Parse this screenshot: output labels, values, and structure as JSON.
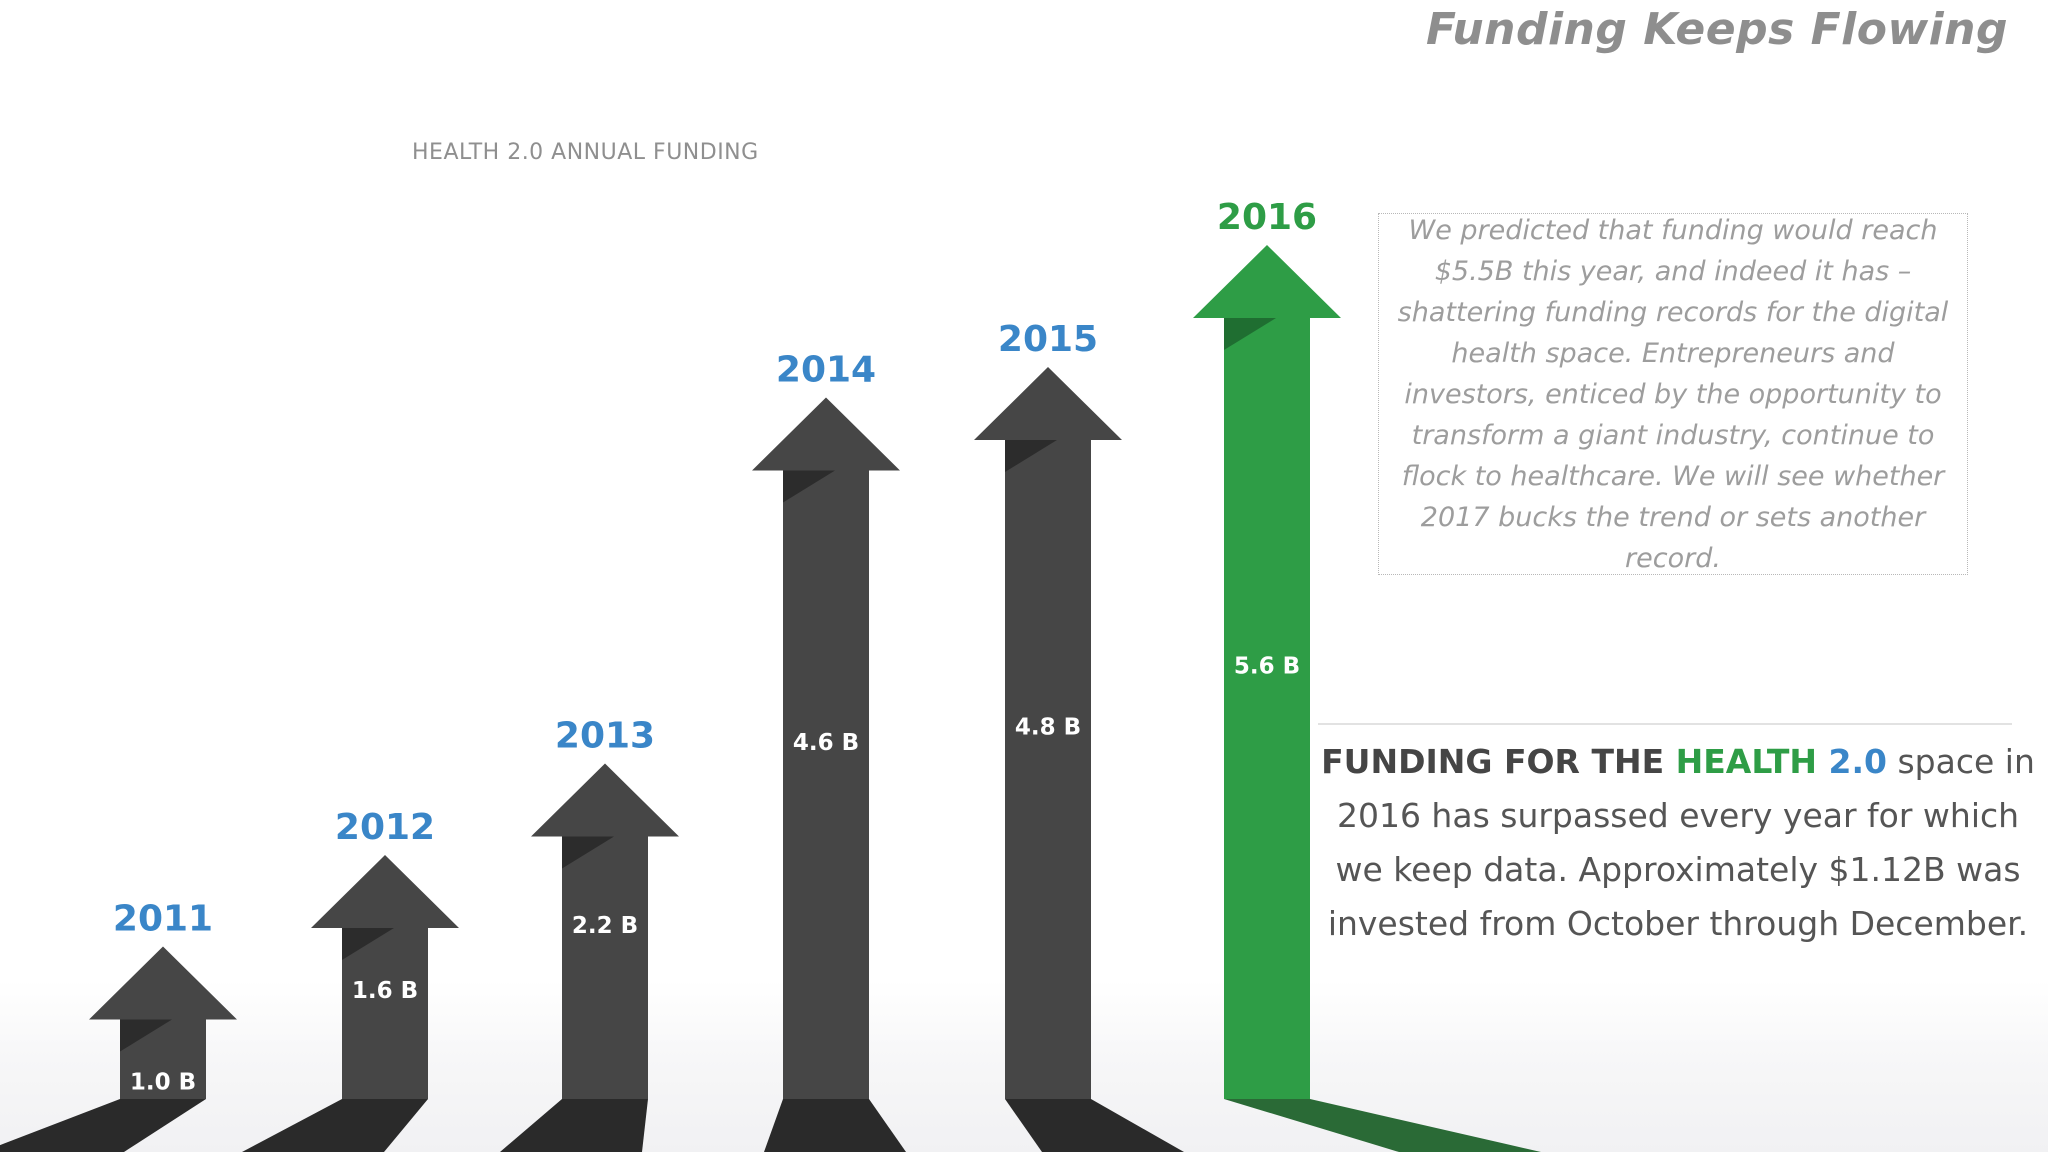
{
  "header": {
    "title": "Funding Keeps Flowing"
  },
  "colors": {
    "year_label": "#3a86c8",
    "highlight_year_label": "#2e9d46",
    "arrow": "#464646",
    "arrow_fold": "#2c2c2c",
    "arrow_shadow": "#2a2a2a",
    "highlight_arrow": "#2e9d46",
    "highlight_fold": "#1f6e31",
    "highlight_shadow": "#2a6a36"
  },
  "chart_data": {
    "type": "bar",
    "title": "HEALTH 2.0 ANNUAL FUNDING",
    "categories": [
      "2011",
      "2012",
      "2013",
      "2014",
      "2015",
      "2016"
    ],
    "values": [
      1.0,
      1.6,
      2.2,
      4.6,
      4.8,
      5.6
    ],
    "value_labels": [
      "1.0 B",
      "1.6 B",
      "2.2 B",
      "4.6 B",
      "4.8 B",
      "5.6 B"
    ],
    "unit": "B",
    "highlight": "2016",
    "mark": "arrow"
  },
  "note": {
    "text": "We predicted that funding would reach $5.5B this year, and indeed it has – shattering funding records for the digital health space. Entrepreneurs and investors, enticed by the opportunity to transform a giant industry, continue to flock to healthcare. We will see whether 2017 bucks the trend or sets another record."
  },
  "summary": {
    "lead": "FUNDING FOR THE ",
    "emphasis_green": "HEALTH",
    "emphasis_blue": " 2.0",
    "rest": " space in 2016 has surpassed every year for which we keep data. Approximately $1.12B was invested from October through December."
  }
}
